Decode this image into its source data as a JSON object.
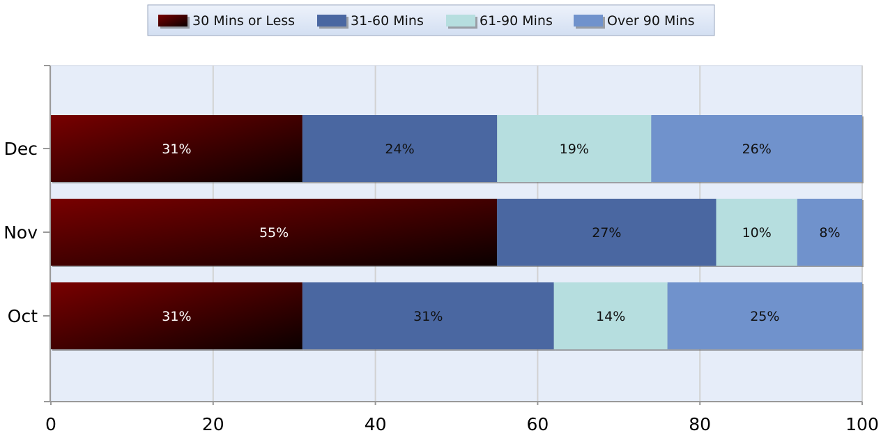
{
  "chart_data": {
    "type": "bar",
    "orientation": "horizontal",
    "stacked": true,
    "categories": [
      "Dec",
      "Nov",
      "Oct"
    ],
    "series": [
      {
        "name": "30 Mins or Less",
        "color": "#6e0000",
        "values": [
          31,
          55,
          31
        ],
        "labels": [
          "31%",
          "55%",
          "31%"
        ]
      },
      {
        "name": "31-60 Mins",
        "color": "#4a67a1",
        "values": [
          24,
          27,
          31
        ],
        "labels": [
          "24%",
          "27%",
          "31%"
        ]
      },
      {
        "name": "61-90 Mins",
        "color": "#b6dedf",
        "values": [
          19,
          10,
          14
        ],
        "labels": [
          "19%",
          "10%",
          "14%"
        ]
      },
      {
        "name": "Over 90 Mins",
        "color": "#7092cc",
        "values": [
          26,
          8,
          25
        ],
        "labels": [
          "26%",
          "8%",
          "25%"
        ]
      }
    ],
    "xlim": [
      0,
      100
    ],
    "xticks": [
      0,
      20,
      40,
      60,
      80,
      100
    ],
    "xlabel": "",
    "ylabel": "",
    "title": "",
    "grid": true,
    "legend_position": "top-center",
    "plot_background": "#e6edf9"
  }
}
